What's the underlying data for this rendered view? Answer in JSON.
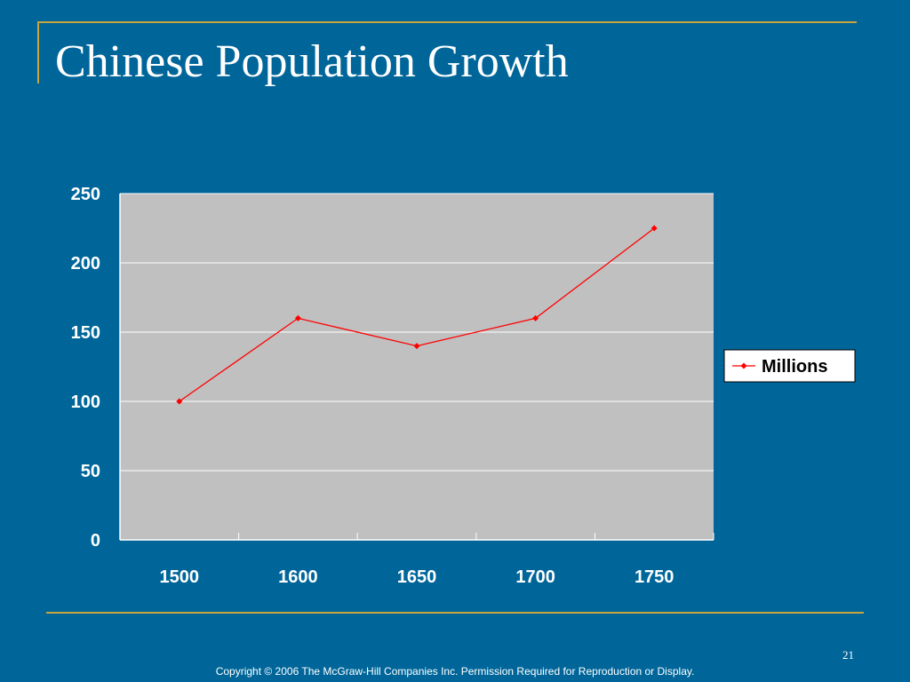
{
  "slide": {
    "title": "Chinese Population Growth",
    "page_number": "21",
    "copyright": "Copyright © 2006 The McGraw-Hill Companies Inc. Permission Required for Reproduction or Display."
  },
  "colors": {
    "background": "#00669a",
    "accent_line": "#c8a43c",
    "plot_area": "#c0c0c0",
    "series_line": "#ff0000"
  },
  "chart_data": {
    "type": "line",
    "title": "",
    "xlabel": "",
    "ylabel": "",
    "categories": [
      "1500",
      "1600",
      "1650",
      "1700",
      "1750"
    ],
    "series": [
      {
        "name": "Millions",
        "values": [
          100,
          160,
          140,
          160,
          225
        ]
      }
    ],
    "ylim": [
      0,
      250
    ],
    "yticks": [
      0,
      50,
      100,
      150,
      200,
      250
    ],
    "grid": true,
    "legend_position": "right"
  }
}
